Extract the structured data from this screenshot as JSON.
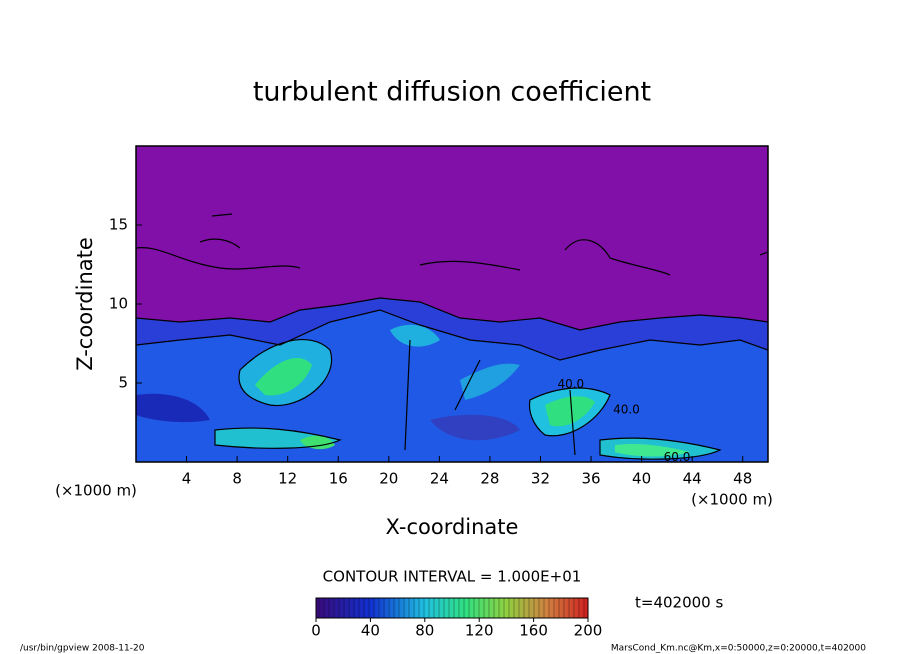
{
  "chart_data": {
    "type": "contour",
    "title": "turbulent diffusion coefficient",
    "x_label": "X-coordinate",
    "y_label": "Z-coordinate",
    "x_unit": "(×1000 m)",
    "y_unit": "(×1000 m)",
    "xlim": [
      0,
      50
    ],
    "xticks": [
      4,
      8,
      12,
      16,
      20,
      24,
      28,
      32,
      36,
      40,
      44,
      48
    ],
    "ylim": [
      0,
      20
    ],
    "yticks": [
      5,
      10,
      15
    ],
    "contour_interval_label": "CONTOUR INTERVAL = 1.000E+01",
    "colorbar": {
      "lim": [
        0,
        200
      ],
      "ticks": [
        0,
        40,
        80,
        120,
        160,
        200
      ]
    },
    "contour_labels": [
      {
        "x": 34.4,
        "y": 4.9,
        "value": 40,
        "label": "40.0"
      },
      {
        "x": 38.8,
        "y": 3.3,
        "value": 40,
        "label": "40.0"
      },
      {
        "x": 42.8,
        "y": 0.3,
        "value": 60,
        "label": "60.0"
      }
    ],
    "time_label": "t=402000 s",
    "footer_left": "/usr/bin/gpview  2008-11-20",
    "footer_right": "MarsCond_Km.nc@Km,x=0:50000,z=0:20000,t=402000"
  }
}
